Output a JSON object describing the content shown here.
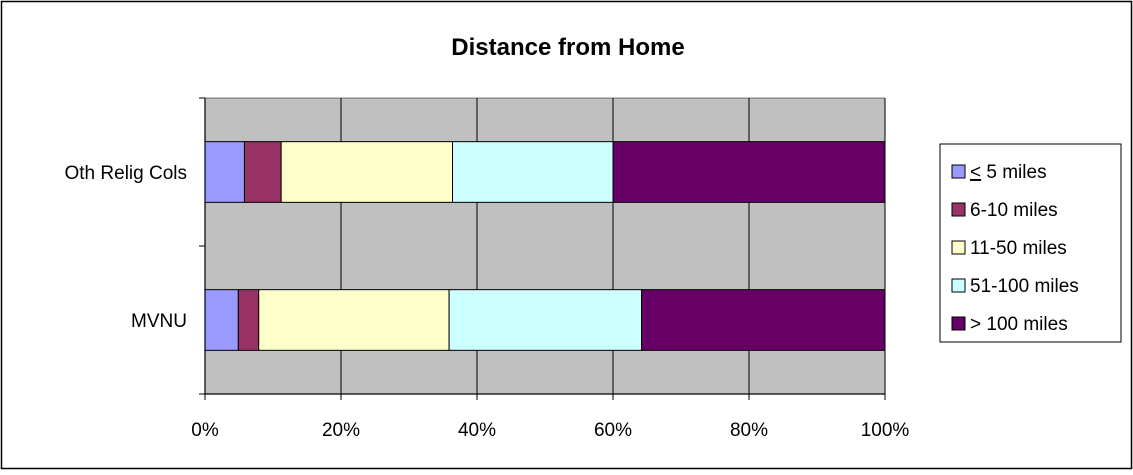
{
  "chart_data": {
    "type": "bar",
    "orientation": "horizontal",
    "stacked": "percent",
    "title": "Distance from Home",
    "categories": [
      "Oth Relig Cols",
      "MVNU"
    ],
    "series": [
      {
        "name": "< 5 miles",
        "color": "#9999ff",
        "values": [
          5.8,
          4.9
        ]
      },
      {
        "name": "6-10 miles",
        "color": "#993366",
        "values": [
          5.4,
          3.0
        ]
      },
      {
        "name": "11-50 miles",
        "color": "#ffffcc",
        "values": [
          25.2,
          28.0
        ]
      },
      {
        "name": "51-100 miles",
        "color": "#ccffff",
        "values": [
          23.6,
          28.3
        ]
      },
      {
        "name": "> 100 miles",
        "color": "#660066",
        "values": [
          40.0,
          35.8
        ]
      }
    ],
    "xlim": [
      0,
      100
    ],
    "xticks": [
      "0%",
      "20%",
      "40%",
      "60%",
      "80%",
      "100%"
    ],
    "grid": true,
    "plot_background": "#c0c0c0",
    "legend_position": "right"
  }
}
